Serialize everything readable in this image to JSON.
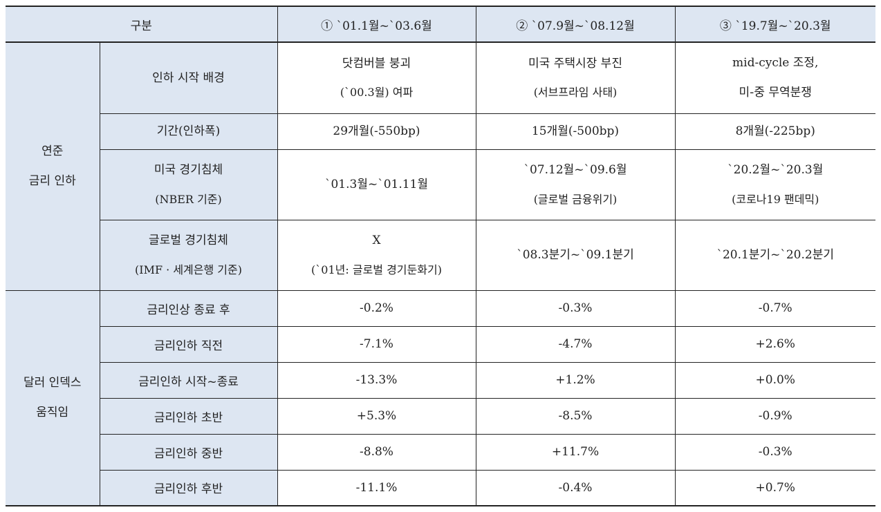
{
  "header": {
    "category": "구분",
    "periods": [
      "① `01.1월~`03.6월",
      "② `07.9월~`08.12월",
      "③ `19.7월~`20.3월"
    ]
  },
  "section1": {
    "label_line1": "연준",
    "label_line2": "금리 인하",
    "rows": [
      {
        "label_lines": [
          "인하 시작 배경"
        ],
        "cells": [
          [
            "닷컴버블 붕괴",
            "(`00.3월) 여파"
          ],
          [
            "미국 주택시장 부진",
            "(서브프라임 사태)"
          ],
          [
            "mid-cycle 조정,",
            "미-중 무역분쟁"
          ]
        ]
      },
      {
        "label_lines": [
          "기간(인하폭)"
        ],
        "cells": [
          [
            "29개월(-550bp)"
          ],
          [
            "15개월(-500bp)"
          ],
          [
            "8개월(-225bp)"
          ]
        ]
      },
      {
        "label_lines": [
          "미국 경기침체",
          "(NBER 기준)"
        ],
        "cells": [
          [
            "`01.3월~`01.11월"
          ],
          [
            "`07.12월~`09.6월",
            "(글로벌 금융위기)"
          ],
          [
            "`20.2월~`20.3월",
            "(코로나19 팬데믹)"
          ]
        ]
      },
      {
        "label_lines": [
          "글로벌 경기침체",
          "(IMF · 세계은행 기준)"
        ],
        "cells": [
          [
            "X",
            "(`01년: 글로벌 경기둔화기)"
          ],
          [
            "`08.3분기~`09.1분기"
          ],
          [
            "`20.1분기~`20.2분기"
          ]
        ]
      }
    ]
  },
  "section2": {
    "label_line1": "달러 인덱스",
    "label_line2": "움직임",
    "rows": [
      {
        "label": "금리인상 종료 후",
        "cells": [
          "-0.2%",
          "-0.3%",
          "-0.7%"
        ]
      },
      {
        "label": "금리인하 직전",
        "cells": [
          "-7.1%",
          "-4.7%",
          "+2.6%"
        ]
      },
      {
        "label": "금리인하 시작~종료",
        "cells": [
          "-13.3%",
          "+1.2%",
          "+0.0%"
        ]
      },
      {
        "label": "금리인하 초반",
        "cells": [
          "+5.3%",
          "-8.5%",
          "-0.9%"
        ]
      },
      {
        "label": "금리인하 중반",
        "cells": [
          "-8.8%",
          "+11.7%",
          "-0.3%"
        ]
      },
      {
        "label": "금리인하 후반",
        "cells": [
          "-11.1%",
          "-0.4%",
          "+0.7%"
        ]
      }
    ]
  },
  "colors": {
    "header_fill": "#dde6f2",
    "border": "#222222"
  }
}
